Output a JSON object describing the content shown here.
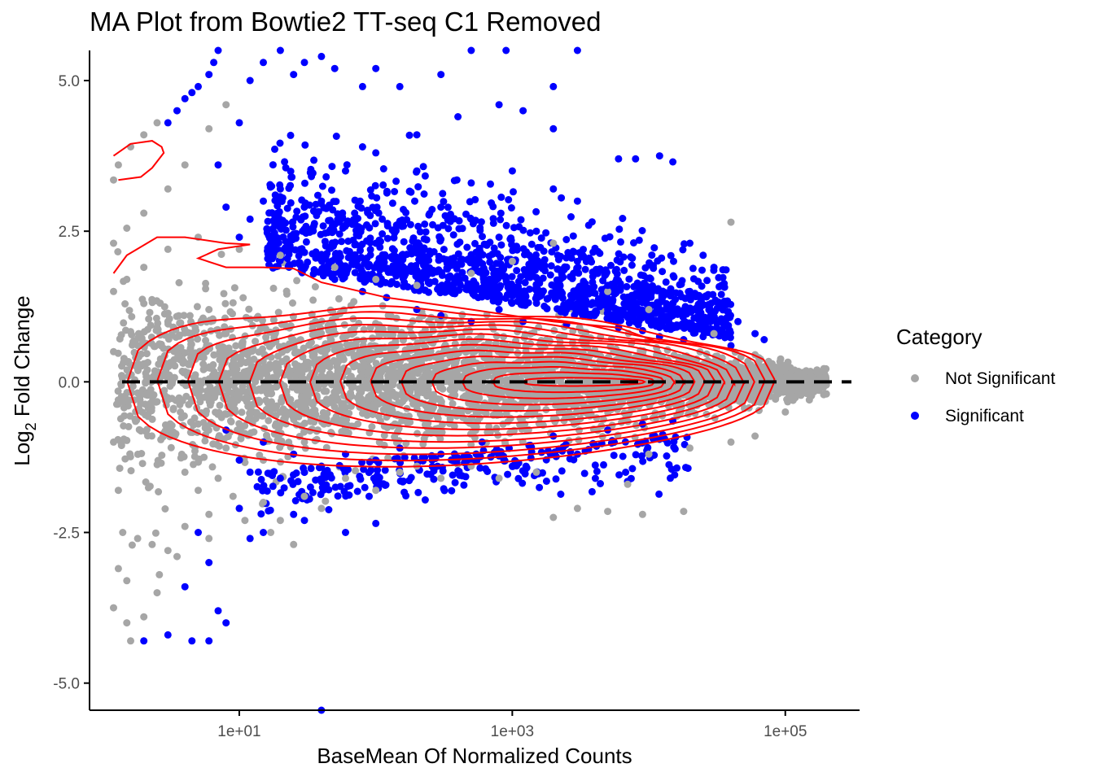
{
  "chart_data": {
    "type": "scatter",
    "title": "MA Plot from Bowtie2 TT-seq C1 Removed",
    "xlabel": "BaseMean Of Normalized Counts",
    "ylabel_main": "Log",
    "ylabel_sub": "2",
    "ylabel_rest": " Fold Change",
    "x_scale": "log10",
    "xlim": [
      0.8,
      350000
    ],
    "ylim": [
      -5.45,
      5.5
    ],
    "x_ticks": [
      {
        "value": 10,
        "label": "1e+01"
      },
      {
        "value": 1000,
        "label": "1e+03"
      },
      {
        "value": 100000,
        "label": "1e+05"
      }
    ],
    "y_ticks": [
      {
        "value": 5,
        "label": "5.0"
      },
      {
        "value": 2.5,
        "label": "2.5"
      },
      {
        "value": 0,
        "label": "0.0"
      },
      {
        "value": -2.5,
        "label": "-2.5"
      },
      {
        "value": -5,
        "label": "-5.0"
      }
    ],
    "reference_line": {
      "y": 0,
      "style": "dashed",
      "color": "#000000"
    },
    "legend": {
      "title": "Category",
      "placement": "right",
      "entries": [
        {
          "label": "Not Significant",
          "color": "#a6a6a6"
        },
        {
          "label": "Significant",
          "color": "#0000ff"
        }
      ]
    },
    "series": [
      {
        "name": "Not Significant",
        "color": "#a6a6a6",
        "points": [
          [
            1.2,
            3.35
          ],
          [
            1.3,
            3.6
          ],
          [
            1.6,
            3.9
          ],
          [
            2.0,
            4.1
          ],
          [
            2.5,
            4.3
          ],
          [
            1.2,
            2.3
          ],
          [
            1.5,
            2.55
          ],
          [
            2.0,
            2.8
          ],
          [
            3.0,
            3.2
          ],
          [
            4.0,
            3.6
          ],
          [
            6.0,
            4.2
          ],
          [
            8.0,
            4.6
          ],
          [
            1.2,
            1.5
          ],
          [
            1.5,
            1.7
          ],
          [
            2.0,
            1.3
          ],
          [
            3.0,
            1.0
          ],
          [
            1.2,
            0.5
          ],
          [
            1.3,
            -0.3
          ],
          [
            1.2,
            -1.0
          ],
          [
            1.3,
            -1.8
          ],
          [
            1.4,
            -2.5
          ],
          [
            1.3,
            -3.1
          ],
          [
            1.5,
            -3.3
          ],
          [
            1.2,
            -3.75
          ],
          [
            1.5,
            -4.0
          ],
          [
            1.6,
            -4.3
          ],
          [
            2.0,
            -3.9
          ],
          [
            2.5,
            -3.5
          ],
          [
            2.3,
            -2.7
          ],
          [
            3.0,
            -2.8
          ],
          [
            4.0,
            -2.4
          ],
          [
            6.0,
            -2.2
          ],
          [
            10.0,
            -2.1
          ],
          [
            15.0,
            -2.0
          ],
          [
            20.0,
            -2.3
          ],
          [
            30.0,
            -1.9
          ],
          [
            40.0,
            -2.1
          ],
          [
            60.0,
            -1.6
          ],
          [
            100.0,
            -1.8
          ],
          [
            150.0,
            -1.5
          ],
          [
            200.0,
            -1.4
          ],
          [
            300.0,
            -1.6
          ],
          [
            500.0,
            -1.4
          ],
          [
            800.0,
            -1.6
          ],
          [
            1500.0,
            -1.5
          ],
          [
            2000.0,
            -2.25
          ],
          [
            3000.0,
            -2.1
          ],
          [
            5000.0,
            -2.15
          ],
          [
            7000.0,
            -1.7
          ],
          [
            9000.0,
            -2.2
          ],
          [
            18000.0,
            -2.15
          ],
          [
            10000.0,
            -1.2
          ],
          [
            20000.0,
            -1.1
          ],
          [
            40000.0,
            -1.0
          ],
          [
            60000.0,
            -0.9
          ],
          [
            100000.0,
            -0.5
          ],
          [
            150000.0,
            -0.3
          ],
          [
            200000.0,
            -0.2
          ],
          [
            120000.0,
            0.1
          ],
          [
            150000.0,
            0.05
          ],
          [
            200000.0,
            -0.05
          ],
          [
            80000.0,
            0.3
          ],
          [
            60000.0,
            0.45
          ],
          [
            40000.0,
            2.65
          ],
          [
            30000.0,
            0.8
          ],
          [
            10000.0,
            1.2
          ],
          [
            5000.0,
            1.5
          ],
          [
            2000.0,
            2.3
          ],
          [
            1000.0,
            2.0
          ],
          [
            500.0,
            1.8
          ],
          [
            200.0,
            1.6
          ],
          [
            100.0,
            1.7
          ],
          [
            50.0,
            1.9
          ],
          [
            20.0,
            2.1
          ],
          [
            10.0,
            2.2
          ],
          [
            5.0,
            2.4
          ],
          [
            3.0,
            2.2
          ],
          [
            2.0,
            1.9
          ],
          [
            6.0,
            1.2
          ],
          [
            8.0,
            0.8
          ],
          [
            12.0,
            0.5
          ],
          [
            20.0,
            -0.5
          ],
          [
            30.0,
            -1.0
          ],
          [
            15.0,
            -1.3
          ],
          [
            8.0,
            -1.1
          ],
          [
            5.0,
            -0.7
          ],
          [
            3.0,
            -0.3
          ],
          [
            2.0,
            0.3
          ],
          [
            2.5,
            0.9
          ],
          [
            4.0,
            -1.5
          ],
          [
            5.0,
            -1.8
          ],
          [
            7.0,
            -1.6
          ],
          [
            9.0,
            -1.9
          ],
          [
            25.0,
            -2.7
          ],
          [
            17.0,
            -2.5
          ],
          [
            11.0,
            -2.3
          ],
          [
            6.0,
            -2.6
          ],
          [
            3.5,
            -2.9
          ],
          [
            2.6,
            -3.2
          ],
          [
            1.8,
            -2.6
          ]
        ]
      },
      {
        "name": "Significant",
        "color": "#0000ff",
        "points": [
          [
            3.0,
            4.3
          ],
          [
            3.5,
            4.5
          ],
          [
            4.0,
            4.7
          ],
          [
            4.5,
            4.8
          ],
          [
            5.0,
            4.9
          ],
          [
            6.0,
            5.1
          ],
          [
            6.5,
            5.3
          ],
          [
            7.0,
            5.5
          ],
          [
            7.0,
            3.6
          ],
          [
            10.0,
            4.3
          ],
          [
            12.0,
            5.0
          ],
          [
            15.0,
            5.3
          ],
          [
            20.0,
            5.5
          ],
          [
            25.0,
            5.1
          ],
          [
            30.0,
            5.3
          ],
          [
            40.0,
            5.4
          ],
          [
            50.0,
            5.2
          ],
          [
            80.0,
            4.9
          ],
          [
            100.0,
            5.2
          ],
          [
            150.0,
            4.9
          ],
          [
            300.0,
            5.1
          ],
          [
            500.0,
            5.5
          ],
          [
            900.0,
            5.5
          ],
          [
            2000.0,
            4.9
          ],
          [
            3000.0,
            5.5
          ],
          [
            1200.0,
            4.5
          ],
          [
            2000.0,
            4.2
          ],
          [
            800.0,
            4.6
          ],
          [
            400.0,
            4.4
          ],
          [
            200.0,
            4.1
          ],
          [
            80.0,
            3.9
          ],
          [
            60.0,
            3.5
          ],
          [
            100.0,
            3.8
          ],
          [
            200.0,
            3.5
          ],
          [
            500.0,
            3.3
          ],
          [
            1000.0,
            3.5
          ],
          [
            2000.0,
            3.2
          ],
          [
            3000.0,
            3.0
          ],
          [
            6000.0,
            3.7
          ],
          [
            8000.0,
            3.7
          ],
          [
            12000.0,
            3.75
          ],
          [
            15000.0,
            3.65
          ],
          [
            20000.0,
            2.3
          ],
          [
            25000.0,
            2.1
          ],
          [
            30000.0,
            1.9
          ],
          [
            35000.0,
            1.6
          ],
          [
            45000.0,
            1.0
          ],
          [
            60000.0,
            0.8
          ],
          [
            70000.0,
            0.7
          ],
          [
            20000.0,
            1.5
          ],
          [
            15000.0,
            1.3
          ],
          [
            10000.0,
            1.4
          ],
          [
            5000.0,
            1.6
          ],
          [
            3000.0,
            2.0
          ],
          [
            1500.0,
            2.5
          ],
          [
            800.0,
            2.4
          ],
          [
            500.0,
            2.7
          ],
          [
            300.0,
            2.9
          ],
          [
            150.0,
            2.6
          ],
          [
            100.0,
            2.3
          ],
          [
            70.0,
            2.8
          ],
          [
            40.0,
            3.0
          ],
          [
            30.0,
            2.5
          ],
          [
            20.0,
            3.2
          ],
          [
            15.0,
            3.0
          ],
          [
            12.0,
            2.7
          ],
          [
            10.0,
            2.4
          ],
          [
            8.0,
            2.9
          ],
          [
            50.0,
            1.7
          ],
          [
            80.0,
            1.5
          ],
          [
            120.0,
            1.4
          ],
          [
            200.0,
            1.2
          ],
          [
            300.0,
            1.1
          ],
          [
            500.0,
            1.0
          ],
          [
            800.0,
            1.2
          ],
          [
            1200.0,
            1.0
          ],
          [
            2500.0,
            0.95
          ],
          [
            4000.0,
            1.1
          ],
          [
            6000.0,
            0.9
          ],
          [
            9000.0,
            0.85
          ],
          [
            12000.0,
            0.75
          ],
          [
            18000.0,
            0.7
          ],
          [
            25000.0,
            0.75
          ],
          [
            40000.0,
            0.6
          ],
          [
            8.0,
            -0.8
          ],
          [
            10.0,
            -1.3
          ],
          [
            12.0,
            -1.5
          ],
          [
            15.0,
            -1.0
          ],
          [
            20.0,
            -1.6
          ],
          [
            25.0,
            -1.2
          ],
          [
            40.0,
            -1.4
          ],
          [
            60.0,
            -1.2
          ],
          [
            100.0,
            -1.3
          ],
          [
            150.0,
            -1.1
          ],
          [
            300.0,
            -1.2
          ],
          [
            600.0,
            -1.0
          ],
          [
            1000.0,
            -1.4
          ],
          [
            2000.0,
            -0.9
          ],
          [
            3000.0,
            -1.2
          ],
          [
            5000.0,
            -0.8
          ],
          [
            9000.0,
            -0.7
          ],
          [
            15000.0,
            -0.65
          ],
          [
            10.0,
            -2.1
          ],
          [
            12.0,
            -2.6
          ],
          [
            15.0,
            -2.5
          ],
          [
            25.0,
            -2.2
          ],
          [
            30.0,
            -2.3
          ],
          [
            60.0,
            -2.5
          ],
          [
            100.0,
            -2.35
          ],
          [
            5.0,
            -2.5
          ],
          [
            6.0,
            -3.0
          ],
          [
            4.0,
            -3.4
          ],
          [
            7.0,
            -3.8
          ],
          [
            8.0,
            -4.0
          ],
          [
            4.5,
            -4.3
          ],
          [
            2.0,
            -4.3
          ],
          [
            6.0,
            -4.3
          ],
          [
            40.0,
            -5.45
          ],
          [
            3.0,
            -4.2
          ]
        ]
      }
    ],
    "density_contours": {
      "color": "#ff0000",
      "levels": 14,
      "note": "2D density contour lines overlaid on points"
    }
  }
}
